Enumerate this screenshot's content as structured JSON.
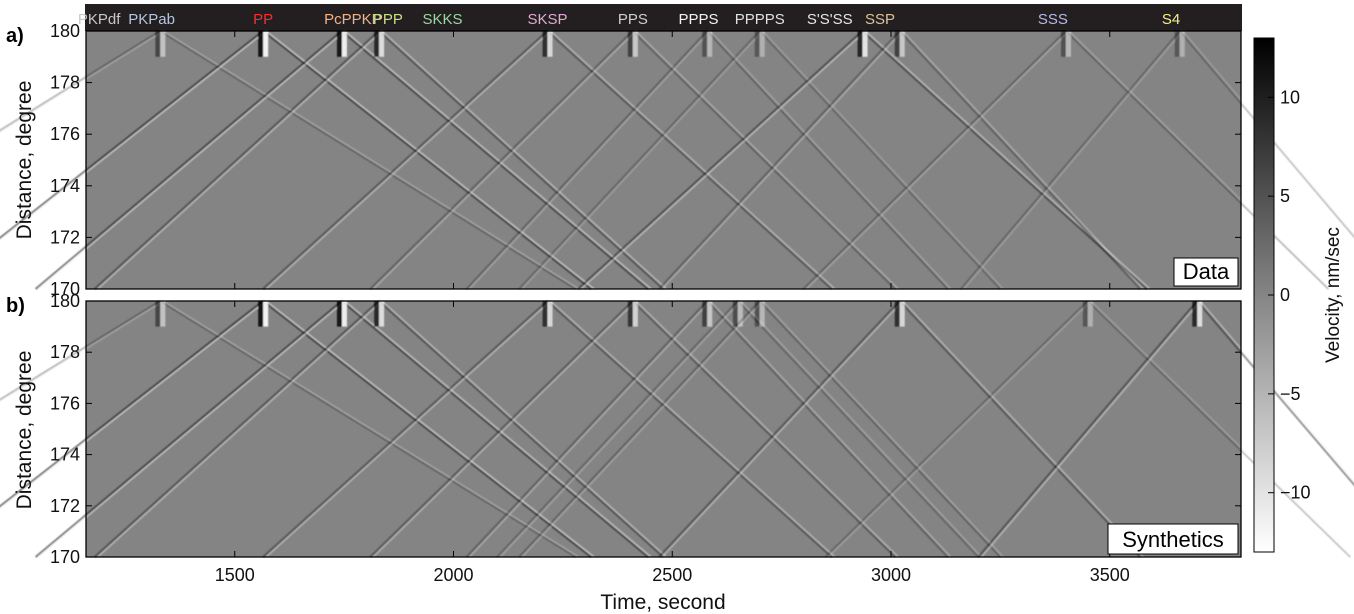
{
  "chart_data": [
    {
      "type": "heatmap",
      "panel_letter": "a)",
      "panel_tag": "Data",
      "ylabel": "Distance, degree",
      "xlabel": "",
      "xlim": [
        1160,
        3800
      ],
      "ylim": [
        170,
        180
      ],
      "y_ticks": [
        170,
        172,
        174,
        176,
        178,
        180
      ],
      "x_ticks": [
        1500,
        2000,
        2500,
        3000,
        3500
      ],
      "arrivals": [
        {
          "time_at_180": 1330,
          "slope": 9.5,
          "amp": 0.55
        },
        {
          "time_at_180": 1565,
          "slope": 7.5,
          "amp": 1.0
        },
        {
          "time_at_180": 1745,
          "slope": 7.0,
          "amp": 0.95
        },
        {
          "time_at_180": 1830,
          "slope": 6.5,
          "amp": 0.8
        },
        {
          "time_at_180": 2215,
          "slope": 6.5,
          "amp": 0.75
        },
        {
          "time_at_180": 2410,
          "slope": 6.0,
          "amp": 0.6
        },
        {
          "time_at_180": 2580,
          "slope": 5.5,
          "amp": 0.45
        },
        {
          "time_at_180": 2700,
          "slope": 5.5,
          "amp": 0.4
        },
        {
          "time_at_180": 2935,
          "slope": 6.5,
          "amp": 0.85
        },
        {
          "time_at_180": 3020,
          "slope": 5.5,
          "amp": 0.6
        },
        {
          "time_at_180": 3400,
          "slope": 6.0,
          "amp": 0.45
        },
        {
          "time_at_180": 3660,
          "slope": 5.0,
          "amp": 0.4
        }
      ]
    },
    {
      "type": "heatmap",
      "panel_letter": "b)",
      "panel_tag": "Synthetics",
      "ylabel": "Distance, degree",
      "xlabel": "Time, second",
      "xlim": [
        1160,
        3800
      ],
      "ylim": [
        170,
        180
      ],
      "y_ticks": [
        170,
        172,
        174,
        176,
        178,
        180
      ],
      "x_ticks": [
        1500,
        2000,
        2500,
        3000,
        3500
      ],
      "arrivals": [
        {
          "time_at_180": 1330,
          "slope": 9.5,
          "amp": 0.55
        },
        {
          "time_at_180": 1565,
          "slope": 7.5,
          "amp": 1.0
        },
        {
          "time_at_180": 1745,
          "slope": 7.0,
          "amp": 0.95
        },
        {
          "time_at_180": 1830,
          "slope": 6.5,
          "amp": 0.8
        },
        {
          "time_at_180": 2215,
          "slope": 6.5,
          "amp": 0.75
        },
        {
          "time_at_180": 2410,
          "slope": 6.0,
          "amp": 0.7
        },
        {
          "time_at_180": 2580,
          "slope": 5.5,
          "amp": 0.6
        },
        {
          "time_at_180": 2650,
          "slope": 5.5,
          "amp": 0.5
        },
        {
          "time_at_180": 2700,
          "slope": 5.5,
          "amp": 0.45
        },
        {
          "time_at_180": 3020,
          "slope": 5.5,
          "amp": 0.75
        },
        {
          "time_at_180": 3450,
          "slope": 6.0,
          "amp": 0.4
        },
        {
          "time_at_180": 3700,
          "slope": 5.0,
          "amp": 0.8
        }
      ]
    }
  ],
  "phases": [
    {
      "label": "PKPdf",
      "time": 1190,
      "color": "#c8c8c8"
    },
    {
      "label": "PKPab",
      "time": 1310,
      "color": "#b4c6e0"
    },
    {
      "label": "PP",
      "time": 1565,
      "color": "#ff2b2b"
    },
    {
      "label": "PcPPKP",
      "time": 1770,
      "color": "#f4b183"
    },
    {
      "label": "PPP",
      "time": 1850,
      "color": "#c8e08a"
    },
    {
      "label": "SKKS",
      "time": 1975,
      "color": "#9fd4a6"
    },
    {
      "label": "SKSP",
      "time": 2215,
      "color": "#e3a8d3"
    },
    {
      "label": "PPS",
      "time": 2410,
      "color": "#cfcfcf"
    },
    {
      "label": "PPPS",
      "time": 2560,
      "color": "#f2f2f2"
    },
    {
      "label": "PPPPS",
      "time": 2700,
      "color": "#e0e0e0"
    },
    {
      "label": "S'S'SS",
      "time": 2860,
      "color": "#e6e6e6"
    },
    {
      "label": "SSP",
      "time": 2975,
      "color": "#d9c39a"
    },
    {
      "label": "SSS",
      "time": 3370,
      "color": "#b9b9e6"
    },
    {
      "label": "S4",
      "time": 3640,
      "color": "#f4ef8a"
    }
  ],
  "colorbar": {
    "label": "Velocity, nm/sec",
    "ticks": [
      10,
      5,
      0,
      -5,
      -10
    ],
    "range": [
      -13,
      13
    ]
  }
}
